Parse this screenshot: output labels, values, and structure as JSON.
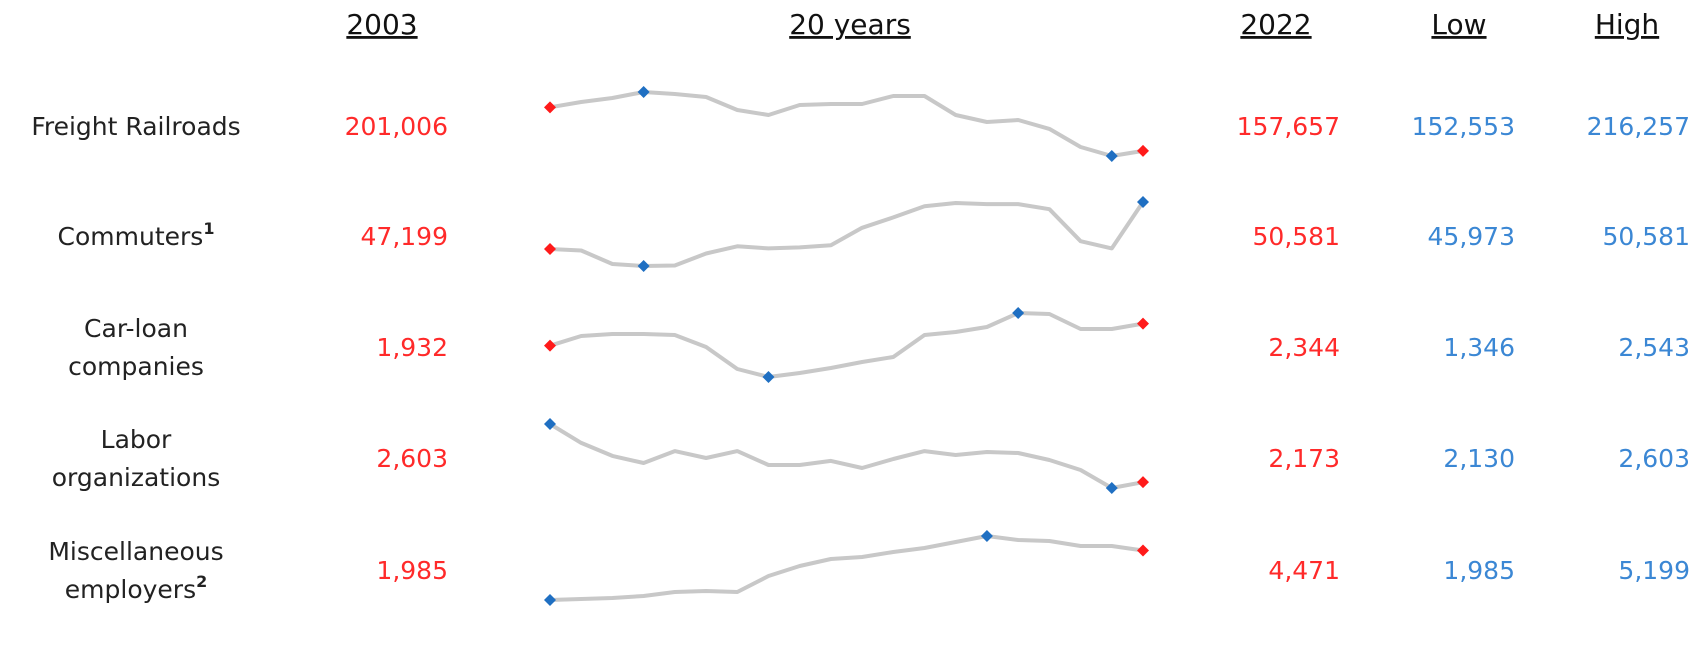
{
  "header": {
    "start": "2003",
    "trend": "20 years",
    "end": "2022",
    "low": "Low",
    "high": "High"
  },
  "rows": [
    {
      "label": [
        "Freight Railroads"
      ],
      "start": "201,006",
      "end": "157,657",
      "low": "152,553",
      "high": "216,257",
      "trend": [
        201006,
        206300,
        210300,
        216257,
        214300,
        211300,
        198300,
        193400,
        203300,
        204300,
        204300,
        212300,
        212300,
        193400,
        186400,
        188400,
        179500,
        161500,
        152553,
        157657
      ]
    },
    {
      "label": [
        "Commuters"
      ],
      "note": "1",
      "start": "47,199",
      "end": "50,581",
      "low": "45,973",
      "high": "50,581",
      "trend": [
        47199,
        47090,
        46120,
        45973,
        46010,
        46870,
        47390,
        47240,
        47310,
        47460,
        48720,
        49470,
        50280,
        50510,
        50430,
        50430,
        50060,
        47760,
        47240,
        50581
      ]
    },
    {
      "label": [
        "Car-loan",
        "companies"
      ],
      "start": "1,932",
      "end": "2,344",
      "low": "1,346",
      "high": "2,543",
      "trend": [
        1932,
        2113,
        2150,
        2150,
        2132,
        1907,
        1496,
        1346,
        1421,
        1515,
        1627,
        1720,
        2132,
        2188,
        2281,
        2543,
        2524,
        2244,
        2244,
        2344
      ]
    },
    {
      "label": [
        "Labor",
        "organizations"
      ],
      "start": "2,603",
      "end": "2,173",
      "low": "2,130",
      "high": "2,603",
      "trend": [
        2603,
        2463,
        2367,
        2315,
        2403,
        2352,
        2403,
        2300,
        2300,
        2330,
        2278,
        2344,
        2403,
        2374,
        2396,
        2389,
        2337,
        2263,
        2130,
        2173
      ]
    },
    {
      "label": [
        "Miscellaneous",
        "employers"
      ],
      "note": "2",
      "start": "1,985",
      "end": "4,471",
      "low": "1,985",
      "high": "5,199",
      "trend": [
        1985,
        2035,
        2085,
        2186,
        2387,
        2437,
        2387,
        3190,
        3692,
        4043,
        4144,
        4395,
        4596,
        4897,
        5199,
        4998,
        4948,
        4697,
        4697,
        4471
      ]
    }
  ]
}
